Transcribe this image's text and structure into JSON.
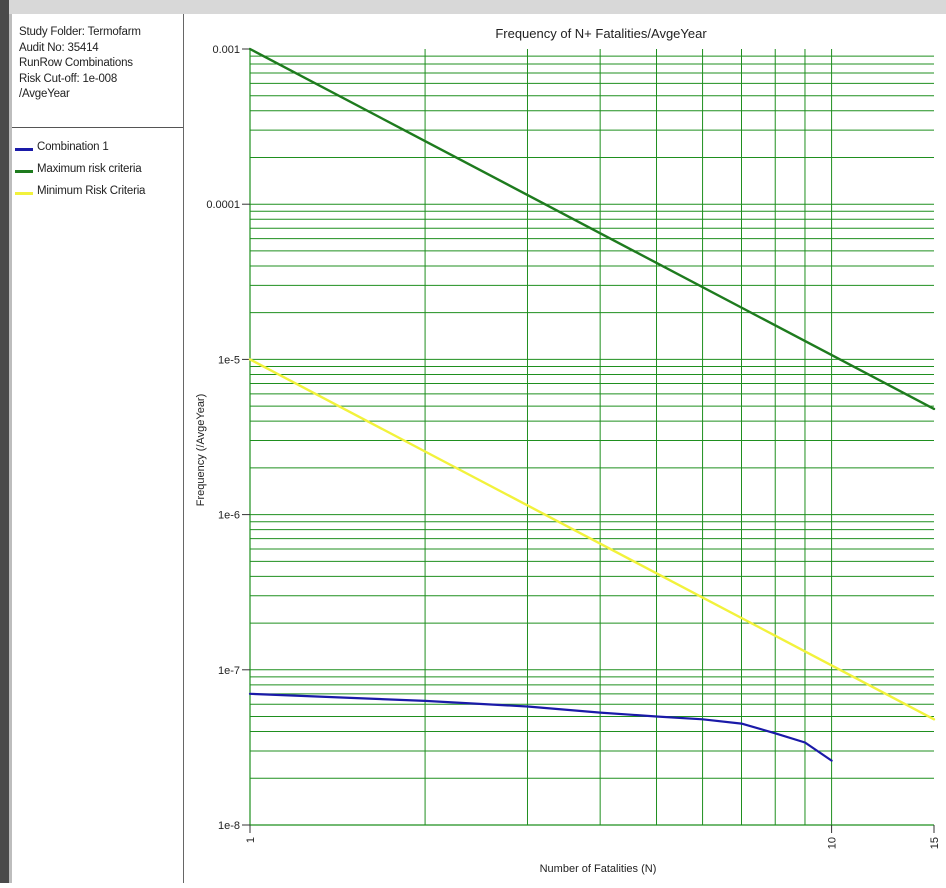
{
  "info": {
    "lines": [
      "Study Folder: Termofarm",
      "Audit No: 35414",
      "RunRow Combinations",
      "Risk Cut-off: 1e-008",
      "/AvgeYear"
    ]
  },
  "chart_data": {
    "type": "line",
    "title": "Frequency of N+ Fatalities/AvgeYear",
    "xlabel": "Number of Fatalities (N)",
    "ylabel": "Frequency (/AvgeYear)",
    "x_scale": "log",
    "y_scale": "log",
    "xlim": [
      1,
      15
    ],
    "ylim": [
      1e-08,
      0.001
    ],
    "x_ticks": [
      1,
      10,
      15
    ],
    "x_tick_labels": [
      "1",
      "10",
      "15"
    ],
    "y_ticks": [
      1e-08,
      1e-07,
      1e-06,
      1e-05,
      0.0001,
      0.001
    ],
    "y_tick_labels": [
      "1e-8",
      "1e-7",
      "1e-6",
      "1e-5",
      "0.0001",
      "0.001"
    ],
    "grid": true,
    "legend_position": "left panel",
    "series": [
      {
        "name": "Combination 1",
        "color": "#1a1aa8",
        "x": [
          1,
          2,
          3,
          4,
          5,
          6,
          7,
          8,
          9,
          10
        ],
        "y": [
          7e-08,
          6.3e-08,
          5.8e-08,
          5.3e-08,
          5e-08,
          4.8e-08,
          4.5e-08,
          3.9e-08,
          3.4e-08,
          2.6e-08
        ]
      },
      {
        "name": "Maximum risk criteria",
        "color": "#1e7b1e",
        "x": [
          1,
          15
        ],
        "y": [
          0.001,
          4.8e-06
        ]
      },
      {
        "name": "Minimum Risk Criteria",
        "color": "#f2f23c",
        "x": [
          1,
          15
        ],
        "y": [
          1e-05,
          4.8e-08
        ]
      }
    ]
  }
}
